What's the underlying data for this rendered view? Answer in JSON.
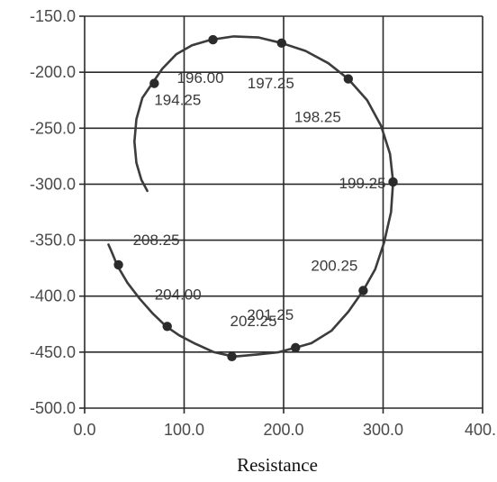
{
  "chart_data": {
    "type": "line",
    "title": "",
    "xlabel": "Resistance",
    "ylabel": "",
    "xlim": [
      0,
      400
    ],
    "ylim": [
      -500,
      -150
    ],
    "grid": true,
    "x_ticks": [
      0,
      100,
      200,
      300,
      400
    ],
    "x_tick_labels": [
      "0.0",
      "100.0",
      "200.0",
      "300.0",
      "400."
    ],
    "y_ticks": [
      -150,
      -200,
      -250,
      -300,
      -350,
      -400,
      -450,
      -500
    ],
    "y_tick_labels": [
      "-150.0",
      "-200.0",
      "-250.0",
      "-300.0",
      "-350.0",
      "-400.0",
      "-450.0",
      "-500.0"
    ],
    "series": [
      {
        "curve": [
          [
            63,
            -306
          ],
          [
            57,
            -296
          ],
          [
            52,
            -281
          ],
          [
            50,
            -262
          ],
          [
            52,
            -242
          ],
          [
            58,
            -223
          ],
          [
            68,
            -210
          ],
          [
            78,
            -197
          ],
          [
            92,
            -184
          ],
          [
            108,
            -176
          ],
          [
            127,
            -171
          ],
          [
            150,
            -168
          ],
          [
            175,
            -169
          ],
          [
            198,
            -174
          ],
          [
            222,
            -181
          ],
          [
            245,
            -192
          ],
          [
            265,
            -206
          ],
          [
            284,
            -225
          ],
          [
            298,
            -248
          ],
          [
            307,
            -273
          ],
          [
            310,
            -298
          ],
          [
            308,
            -325
          ],
          [
            301,
            -352
          ],
          [
            292,
            -376
          ],
          [
            280,
            -395
          ],
          [
            265,
            -414
          ],
          [
            248,
            -431
          ],
          [
            228,
            -442
          ],
          [
            212,
            -446
          ],
          [
            195,
            -450
          ],
          [
            175,
            -452
          ],
          [
            150,
            -454
          ],
          [
            130,
            -450
          ],
          [
            110,
            -442
          ],
          [
            95,
            -435
          ],
          [
            82,
            -427
          ],
          [
            68,
            -415
          ],
          [
            55,
            -402
          ],
          [
            43,
            -388
          ],
          [
            33,
            -373
          ],
          [
            27,
            -360
          ],
          [
            24,
            -354
          ]
        ],
        "points": [
          {
            "x": 70,
            "y": -210,
            "label": "194.25"
          },
          {
            "x": 129,
            "y": -171,
            "label": "196.00"
          },
          {
            "x": 198,
            "y": -174,
            "label": "197.25"
          },
          {
            "x": 265,
            "y": -206,
            "label": "198.25"
          },
          {
            "x": 310,
            "y": -298,
            "label": "199.25"
          },
          {
            "x": 280,
            "y": -395,
            "label": "200.25"
          },
          {
            "x": 212,
            "y": -446,
            "label": "201.25"
          },
          {
            "x": 148,
            "y": -454,
            "label": "202.25"
          },
          {
            "x": 83,
            "y": -427,
            "label": "204.00"
          },
          {
            "x": 34,
            "y": -372,
            "label": "208.25"
          }
        ]
      }
    ]
  }
}
